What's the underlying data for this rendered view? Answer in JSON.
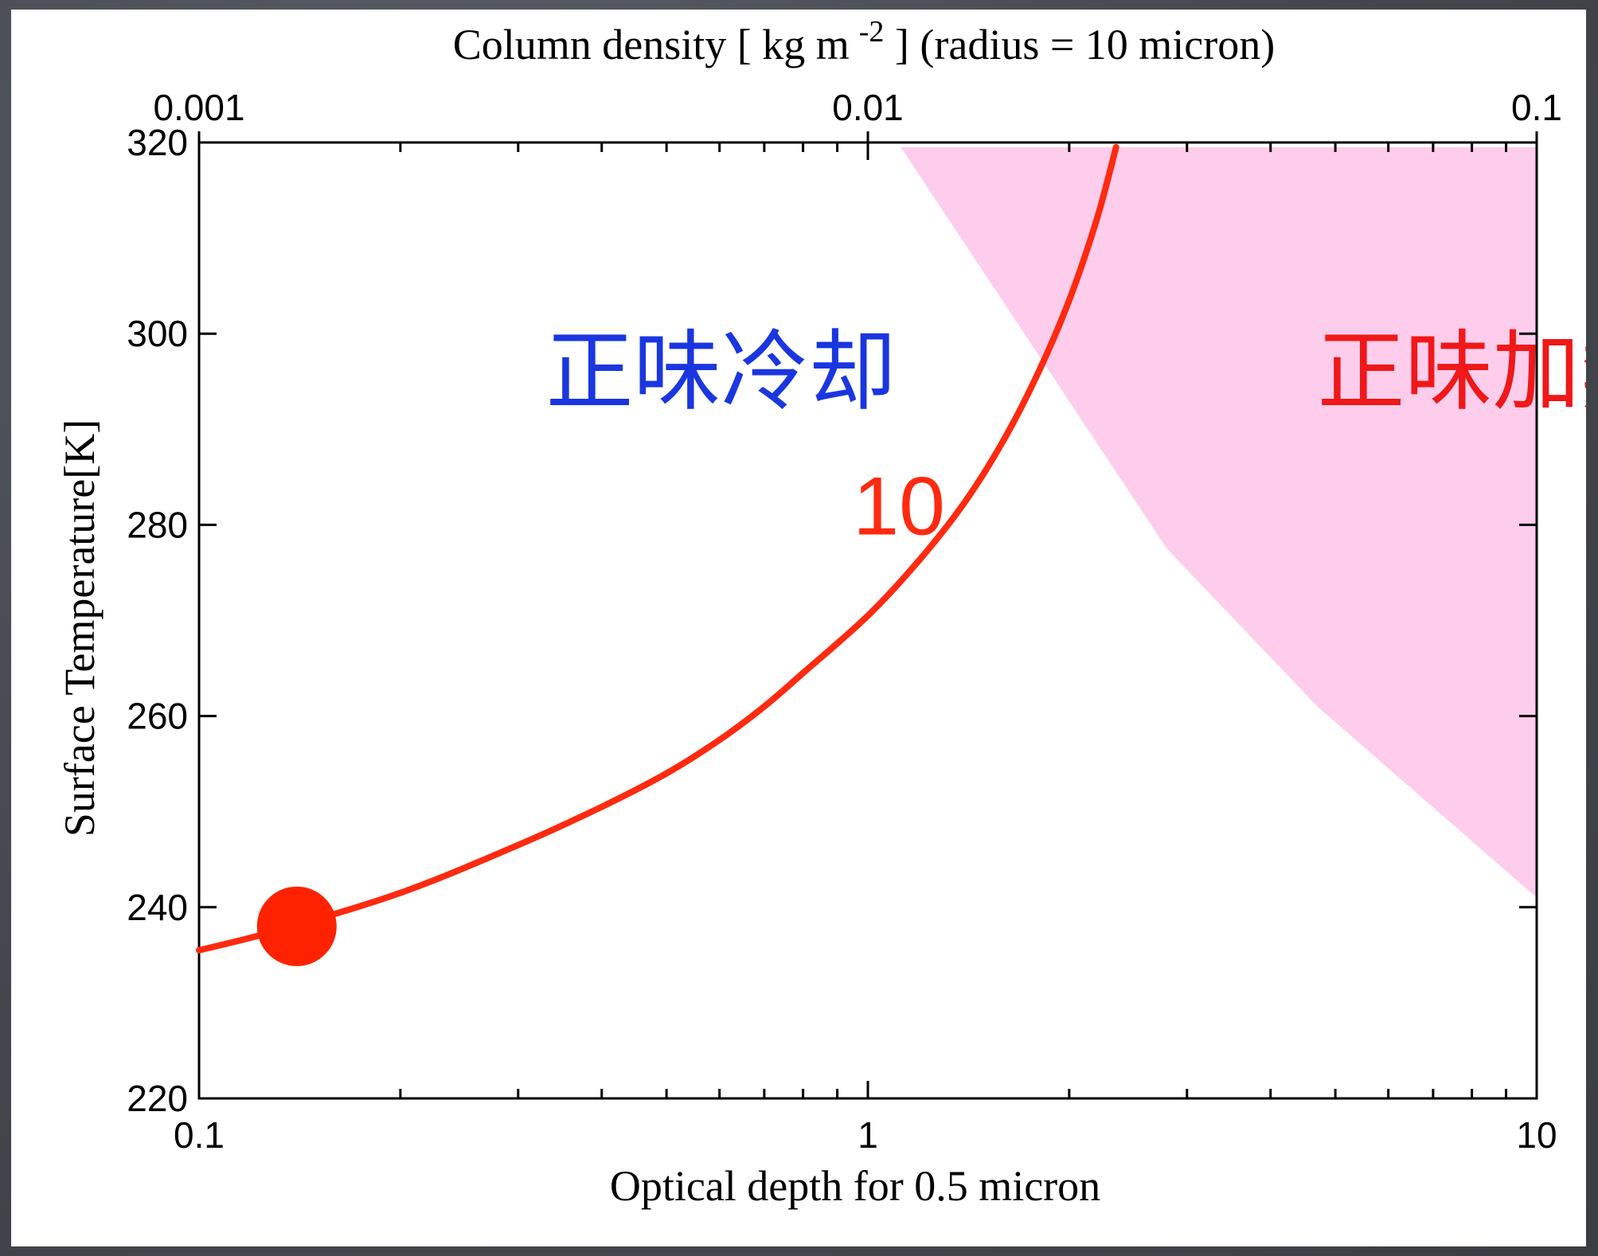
{
  "chart_data": {
    "type": "line",
    "xlabel": "Optical depth for 0.5 micron",
    "ylabel": "Surface Temperature[K]",
    "x2label": "Column density [ kg m",
    "x2label_sup": "-2",
    "x2label_suffix": " ] (radius = 10 micron)",
    "xscale": "log",
    "xlim": [
      0.1,
      10
    ],
    "xticks": [
      0.1,
      1,
      10
    ],
    "xtick_labels": [
      "0.1",
      "1",
      "10"
    ],
    "x2lim": [
      0.001,
      0.1
    ],
    "x2ticks": [
      0.001,
      0.01,
      0.1
    ],
    "x2tick_labels": [
      "0.001",
      "0.01",
      "0.1"
    ],
    "ylim": [
      220,
      320
    ],
    "yticks": [
      220,
      240,
      260,
      280,
      300,
      320
    ],
    "ytick_labels": [
      "220",
      "240",
      "260",
      "280",
      "300",
      "320"
    ],
    "grid": false,
    "series": [
      {
        "name": "10",
        "color": "#ff2a10",
        "x": [
          0.1,
          0.13,
          0.2,
          0.3,
          0.4,
          0.5,
          0.6,
          0.7,
          0.8,
          1.0,
          1.2,
          1.4,
          1.6,
          1.8,
          2.0,
          2.2,
          2.35
        ],
        "y": [
          235.5,
          237.5,
          241.5,
          246.5,
          250.5,
          254.0,
          257.5,
          261.0,
          264.5,
          270.5,
          276.5,
          282.5,
          289.0,
          296.0,
          303.5,
          312.0,
          319.5
        ]
      }
    ],
    "marker": {
      "x": 0.14,
      "y": 238,
      "color": "#ff2200"
    },
    "shaded_region": {
      "color": "#ffcdec",
      "polygon": [
        [
          1.12,
          319.5
        ],
        [
          10,
          319.5
        ],
        [
          10,
          241
        ],
        [
          4.7,
          261
        ],
        [
          2.8,
          277.5
        ]
      ]
    },
    "annotations": [
      {
        "text": "正味冷却",
        "x": 0.33,
        "y": 296,
        "color": "#1a36e0"
      },
      {
        "text": "正味加熱",
        "x": 4.7,
        "y": 296,
        "color": "#f01818"
      },
      {
        "text": "10",
        "x": 0.95,
        "y": 282,
        "color": "#ff2a10"
      }
    ]
  }
}
